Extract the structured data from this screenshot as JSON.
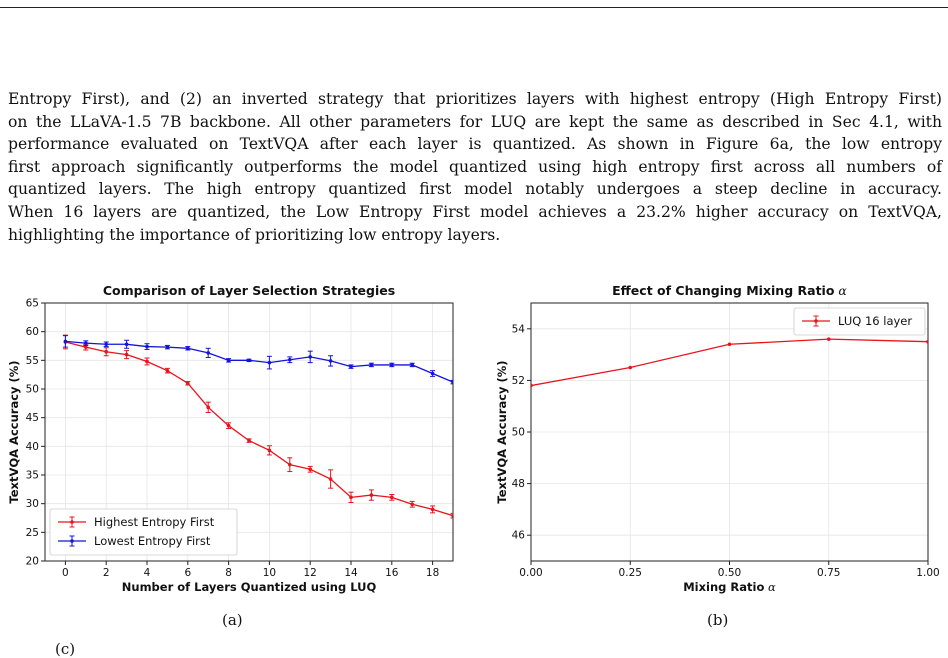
{
  "paragraph": {
    "lines": [
      "Entropy First), and (2) an inverted strategy that prioritizes layers with highest entropy (High Entropy First)",
      "on the LLaVA-1.5 7B backbone. All other parameters for LUQ are kept the same as described in Sec 4.1, with",
      "performance evaluated on TextVQA after each layer is quantized. As shown in Figure 6a, the low entropy",
      "first approach significantly outperforms the model quantized using high entropy first across all numbers of",
      "quantized layers. The high entropy quantized first model notably undergoes a steep decline in accuracy.",
      "When 16 layers are quantized, the Low Entropy First model achieves a 23.2% higher accuracy on TextVQA,",
      "highlighting the importance of prioritizing low entropy layers."
    ]
  },
  "captions": {
    "a": "(a)",
    "b": "(b)",
    "bottom_fragment": "(c)"
  },
  "chart_data": [
    {
      "type": "line",
      "title": "Comparison of Layer Selection Strategies",
      "xlabel": "Number of Layers Quantized using LUQ",
      "ylabel": "TextVQA Accuracy (%)",
      "xlim": [
        -1,
        19
      ],
      "ylim": [
        20,
        65
      ],
      "xticks": [
        "0",
        "2",
        "4",
        "6",
        "8",
        "10",
        "12",
        "14",
        "16",
        "18"
      ],
      "xtick_values": [
        0,
        2,
        4,
        6,
        8,
        10,
        12,
        14,
        16,
        18
      ],
      "yticks": [
        "20",
        "25",
        "30",
        "35",
        "40",
        "45",
        "50",
        "55",
        "60",
        "65"
      ],
      "ytick_values": [
        20,
        25,
        30,
        35,
        40,
        45,
        50,
        55,
        60,
        65
      ],
      "grid": true,
      "legend": "bottom-left",
      "x": [
        0,
        1,
        2,
        3,
        4,
        5,
        6,
        7,
        8,
        9,
        10,
        11,
        12,
        13,
        14,
        15,
        16,
        17,
        18,
        19
      ],
      "series": [
        {
          "name": "Highest Entropy First",
          "color": "#e8141c",
          "values": [
            58.2,
            57.3,
            56.5,
            56.0,
            54.8,
            53.2,
            51.0,
            46.8,
            43.6,
            41.0,
            39.3,
            36.8,
            36.0,
            34.3,
            31.1,
            31.5,
            31.1,
            29.9,
            29.0,
            27.9
          ],
          "errors": [
            1.2,
            0.5,
            0.7,
            0.7,
            0.6,
            0.4,
            0.3,
            0.9,
            0.5,
            0.3,
            0.8,
            1.2,
            0.5,
            1.6,
            0.9,
            0.9,
            0.5,
            0.5,
            0.6,
            0.4
          ]
        },
        {
          "name": "Lowest Entropy First",
          "color": "#1414dc",
          "values": [
            58.3,
            58.0,
            57.8,
            57.8,
            57.4,
            57.3,
            57.1,
            56.3,
            55.0,
            55.0,
            54.6,
            55.1,
            55.6,
            54.9,
            53.9,
            54.2,
            54.2,
            54.2,
            52.7,
            51.2
          ],
          "errors": [
            1.0,
            0.4,
            0.4,
            0.7,
            0.5,
            0.3,
            0.3,
            0.8,
            0.3,
            0.2,
            1.1,
            0.5,
            1.0,
            0.9,
            0.3,
            0.3,
            0.3,
            0.3,
            0.5,
            0.3
          ]
        }
      ]
    },
    {
      "type": "line",
      "title": "Effect of Changing Mixing Ratio",
      "title_symbol": "α",
      "xlabel": "Mixing Ratio",
      "xlabel_symbol": "α",
      "ylabel": "TextVQA Accuracy (%)",
      "xlim": [
        0.0,
        1.0
      ],
      "ylim": [
        45.0,
        55.0
      ],
      "xticks": [
        "0.00",
        "0.25",
        "0.50",
        "0.75",
        "1.00"
      ],
      "xtick_values": [
        0.0,
        0.25,
        0.5,
        0.75,
        1.0
      ],
      "yticks": [
        "46",
        "48",
        "50",
        "52",
        "54"
      ],
      "ytick_values": [
        46,
        48,
        50,
        52,
        54
      ],
      "grid": true,
      "legend": "top-right",
      "x": [
        0.0,
        0.25,
        0.5,
        0.75,
        1.0
      ],
      "series": [
        {
          "name": "LUQ 16 layer",
          "color": "#e8141c",
          "values": [
            51.8,
            52.5,
            53.4,
            53.6,
            53.5
          ]
        }
      ]
    }
  ]
}
